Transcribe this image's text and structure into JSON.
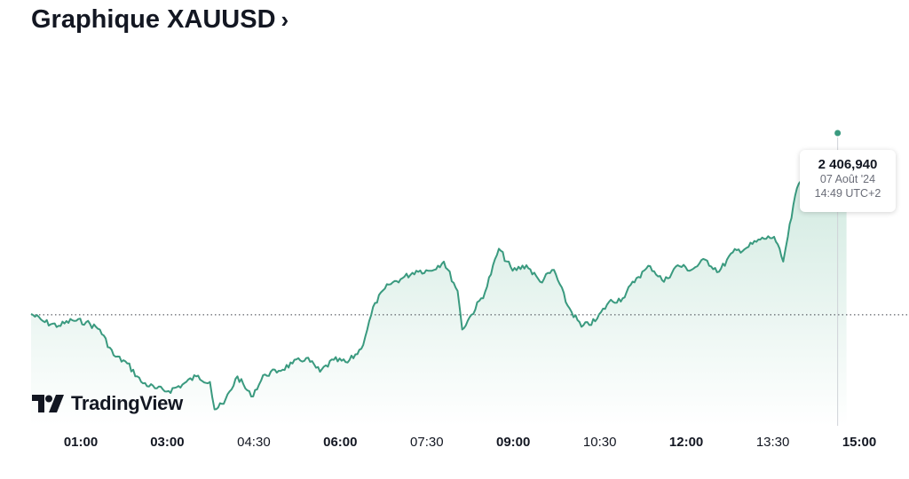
{
  "header": {
    "title": "Graphique XAUUSD",
    "chevron_icon": "chevron-right-icon"
  },
  "brand": {
    "name": "TradingView",
    "logo_icon": "tradingview-logo-icon"
  },
  "tooltip": {
    "price": "2 406,940",
    "date": "07 Août '24",
    "time": "14:49 UTC+2"
  },
  "colors": {
    "line": "#3a9a7f",
    "fill_top": "#cfe9df",
    "fill_bottom": "#ffffff",
    "text": "#131722",
    "muted": "#6a6d78"
  },
  "chart_data": {
    "type": "area",
    "x_ticks": [
      {
        "label": "01:00",
        "bold": true
      },
      {
        "label": "03:00",
        "bold": true
      },
      {
        "label": "04:30",
        "bold": false
      },
      {
        "label": "06:00",
        "bold": true
      },
      {
        "label": "07:30",
        "bold": false
      },
      {
        "label": "09:00",
        "bold": true
      },
      {
        "label": "10:30",
        "bold": false
      },
      {
        "label": "12:00",
        "bold": true
      },
      {
        "label": "13:30",
        "bold": false
      },
      {
        "label": "15:00",
        "bold": true
      }
    ],
    "x_range": [
      "00:00",
      "15:00"
    ],
    "y_range": [
      2378.5,
      2410
    ],
    "previous_close_line": 2390.2,
    "grid": false,
    "series": [
      {
        "points": [
          [
            "00:00",
            2390.3
          ],
          [
            "00:15",
            2389.4
          ],
          [
            "00:30",
            2389.0
          ],
          [
            "00:45",
            2389.6
          ],
          [
            "01:00",
            2389.4
          ],
          [
            "01:15",
            2388.6
          ],
          [
            "01:30",
            2385.8
          ],
          [
            "01:45",
            2384.9
          ],
          [
            "02:00",
            2382.9
          ],
          [
            "02:15",
            2382.2
          ],
          [
            "02:30",
            2381.9
          ],
          [
            "02:45",
            2382.6
          ],
          [
            "03:00",
            2383.5
          ],
          [
            "03:15",
            2382.9
          ],
          [
            "03:20",
            2379.9
          ],
          [
            "03:30",
            2380.5
          ],
          [
            "03:45",
            2383.5
          ],
          [
            "04:00",
            2381.3
          ],
          [
            "04:15",
            2383.7
          ],
          [
            "04:30",
            2384.1
          ],
          [
            "04:45",
            2384.9
          ],
          [
            "05:00",
            2385.5
          ],
          [
            "05:15",
            2384.0
          ],
          [
            "05:30",
            2385.3
          ],
          [
            "05:45",
            2385.0
          ],
          [
            "06:00",
            2386.5
          ],
          [
            "06:15",
            2391.5
          ],
          [
            "06:30",
            2393.5
          ],
          [
            "06:45",
            2394.2
          ],
          [
            "07:00",
            2395.0
          ],
          [
            "07:15",
            2395.0
          ],
          [
            "07:30",
            2396.0
          ],
          [
            "07:45",
            2392.8
          ],
          [
            "07:50",
            2388.6
          ],
          [
            "08:00",
            2390.2
          ],
          [
            "08:15",
            2392.7
          ],
          [
            "08:30",
            2397.4
          ],
          [
            "08:45",
            2395.0
          ],
          [
            "09:00",
            2395.6
          ],
          [
            "09:15",
            2393.8
          ],
          [
            "09:30",
            2395.1
          ],
          [
            "09:45",
            2391.2
          ],
          [
            "10:00",
            2388.9
          ],
          [
            "10:15",
            2389.5
          ],
          [
            "10:30",
            2391.6
          ],
          [
            "10:45",
            2392.0
          ],
          [
            "11:00",
            2394.2
          ],
          [
            "11:15",
            2395.5
          ],
          [
            "11:30",
            2393.8
          ],
          [
            "11:45",
            2395.6
          ],
          [
            "12:00",
            2395.1
          ],
          [
            "12:15",
            2396.2
          ],
          [
            "12:30",
            2394.9
          ],
          [
            "12:45",
            2397.0
          ],
          [
            "13:00",
            2397.5
          ],
          [
            "13:15",
            2398.4
          ],
          [
            "13:30",
            2398.7
          ],
          [
            "13:40",
            2396.0
          ],
          [
            "13:45",
            2398.7
          ],
          [
            "13:55",
            2404.0
          ],
          [
            "14:05",
            2405.8
          ],
          [
            "14:20",
            2402.5
          ],
          [
            "14:35",
            2404.1
          ],
          [
            "14:49",
            2406.9
          ]
        ]
      }
    ]
  }
}
